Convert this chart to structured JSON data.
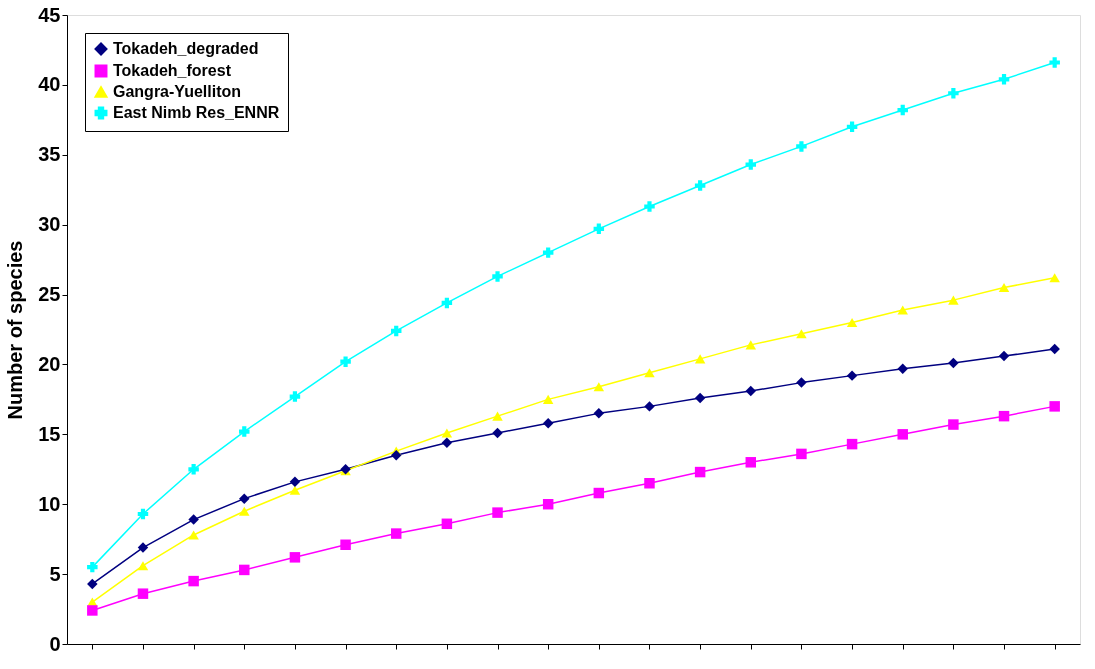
{
  "chart_data": {
    "type": "line",
    "ylabel": "Number of species",
    "categories": [
      null,
      null,
      null,
      null,
      null,
      null,
      null,
      null,
      null,
      null,
      null,
      null,
      null,
      null,
      null,
      null,
      null,
      null,
      null,
      null
    ],
    "ylim": [
      0,
      45
    ],
    "yticks": [
      0,
      5,
      10,
      15,
      20,
      25,
      30,
      35,
      40,
      45
    ],
    "grid": false,
    "legend": "top left",
    "tick_labels": "y",
    "line_style": "solid",
    "series": [
      {
        "name": "Tokadeh_degraded",
        "color": "#000080",
        "marker": "diamond",
        "values": [
          4.3,
          6.9,
          8.9,
          10.4,
          11.6,
          12.5,
          13.5,
          14.4,
          15.1,
          15.8,
          16.5,
          17.0,
          17.6,
          18.1,
          18.7,
          19.2,
          19.7,
          20.1,
          20.6,
          21.1
        ]
      },
      {
        "name": "Tokadeh_forest",
        "color": "#ff00ff",
        "marker": "square",
        "values": [
          2.4,
          3.6,
          4.5,
          5.3,
          6.2,
          7.1,
          7.9,
          8.6,
          9.4,
          10.0,
          10.8,
          11.5,
          12.3,
          13.0,
          13.6,
          14.3,
          15.0,
          15.7,
          16.3,
          17.0
        ]
      },
      {
        "name": "Gangra-Yuelliton",
        "color": "#ffff00",
        "marker": "triangle",
        "values": [
          3.0,
          5.6,
          7.8,
          9.5,
          11.0,
          12.4,
          13.8,
          15.1,
          16.3,
          17.5,
          18.4,
          19.4,
          20.4,
          21.4,
          22.2,
          23.0,
          23.9,
          24.6,
          25.5,
          26.2
        ]
      },
      {
        "name": "East Nimb Res_ENNR",
        "color": "#00ffff",
        "marker": "cross",
        "values": [
          5.5,
          9.3,
          12.5,
          15.2,
          17.7,
          20.2,
          22.4,
          24.4,
          26.3,
          28.0,
          29.7,
          31.3,
          32.8,
          34.3,
          35.6,
          37.0,
          38.2,
          39.4,
          40.4,
          41.6
        ]
      }
    ]
  }
}
